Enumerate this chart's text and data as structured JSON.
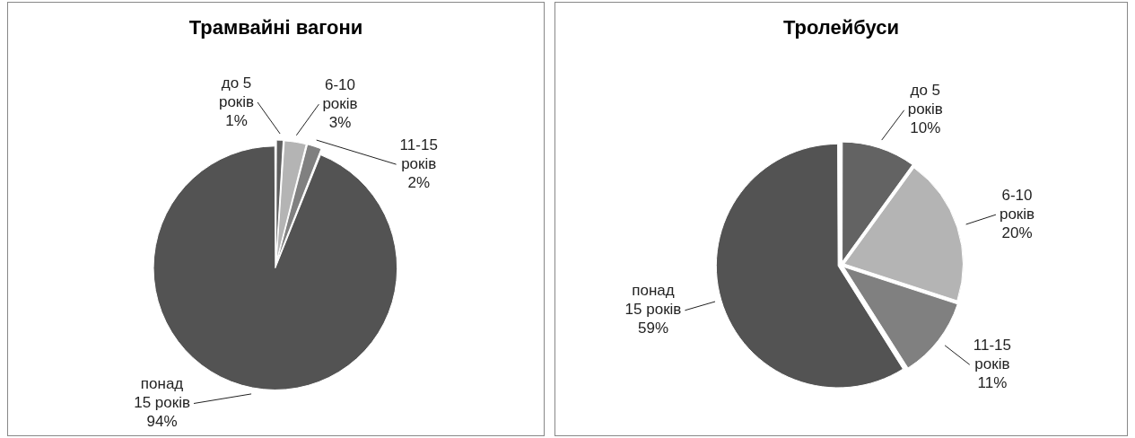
{
  "chart_data": [
    {
      "type": "pie",
      "title": "Трамвайні вагони",
      "categories": [
        "до 5 років",
        "6-10 років",
        "11-15 років",
        "понад 15 років"
      ],
      "values": [
        1,
        3,
        2,
        94
      ],
      "value_labels": [
        "1%",
        "3%",
        "2%",
        "94%"
      ],
      "colors": [
        "#5f5f5f",
        "#b4b4b4",
        "#808080",
        "#535353"
      ],
      "legend": false
    },
    {
      "type": "pie",
      "title": "Тролейбуси",
      "categories": [
        "до 5 років",
        "6-10 років",
        "11-15 років",
        "понад 15 років"
      ],
      "values": [
        10,
        20,
        11,
        59
      ],
      "value_labels": [
        "10%",
        "20%",
        "11%",
        "59%"
      ],
      "colors": [
        "#636363",
        "#b4b4b4",
        "#808080",
        "#535353"
      ],
      "legend": false
    }
  ]
}
